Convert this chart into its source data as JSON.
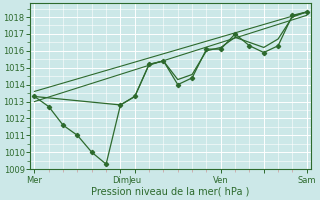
{
  "xlabel": "Pression niveau de la mer( hPa )",
  "bg_color": "#cce8e8",
  "grid_color": "#ffffff",
  "line_color": "#2d6a2d",
  "minor_tick_color": "#cc9999",
  "ylim": [
    1009,
    1018.8
  ],
  "yticks": [
    1009,
    1010,
    1011,
    1012,
    1013,
    1014,
    1015,
    1016,
    1017,
    1018
  ],
  "xlim": [
    -0.3,
    19.3
  ],
  "major_xticks": [
    0,
    6,
    7,
    13,
    16,
    19
  ],
  "xtick_labels": [
    "Mer",
    "Dim",
    "Jeu",
    "Ven",
    "",
    "Sam"
  ],
  "line1_x": [
    0,
    1,
    2,
    3,
    4,
    5,
    6,
    7,
    8,
    9,
    10,
    11,
    12,
    13,
    14,
    15,
    16,
    17,
    18,
    19
  ],
  "line1_y": [
    1013.3,
    1012.7,
    1011.6,
    1011.0,
    1010.0,
    1009.3,
    1012.8,
    1013.3,
    1015.2,
    1015.4,
    1014.0,
    1014.4,
    1016.1,
    1016.1,
    1017.0,
    1016.3,
    1015.9,
    1016.3,
    1018.1,
    1018.3
  ],
  "line2_x": [
    0,
    6,
    7,
    8,
    9,
    10,
    11,
    12,
    13,
    14,
    15,
    16,
    17,
    18,
    19
  ],
  "line2_y": [
    1013.3,
    1012.8,
    1013.3,
    1015.2,
    1015.4,
    1014.3,
    1014.6,
    1016.0,
    1016.2,
    1016.8,
    1016.5,
    1016.2,
    1016.7,
    1018.0,
    1018.3
  ],
  "trend1_x": [
    0,
    19
  ],
  "trend1_y": [
    1013.0,
    1018.1
  ],
  "trend2_x": [
    0,
    19
  ],
  "trend2_y": [
    1013.6,
    1018.3
  ]
}
